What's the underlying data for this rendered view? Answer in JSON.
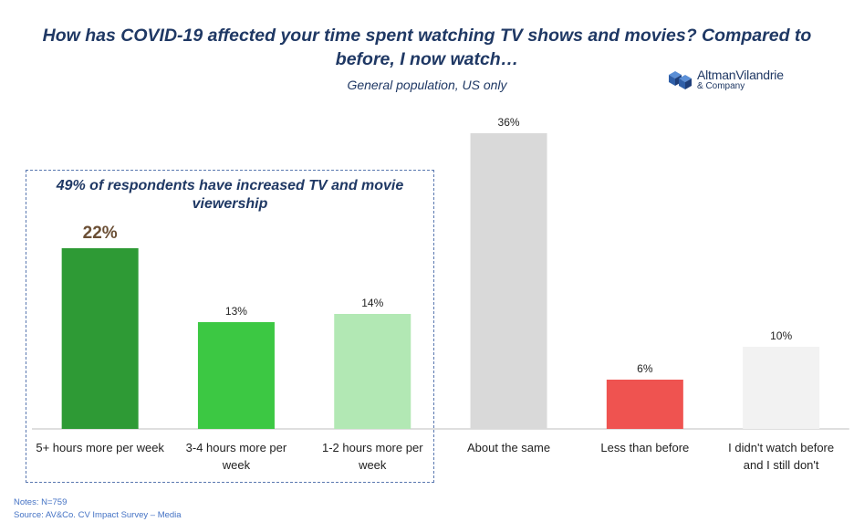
{
  "chart_data": {
    "type": "bar",
    "title": "How has COVID-19 affected your time spent watching TV shows and movies? Compared to before, I now watch…",
    "subtitle": "General population, US only",
    "categories": [
      "5+ hours more per week",
      "3-4 hours more per week",
      "1-2 hours more per week",
      "About the same",
      "Less than before",
      "I didn't watch before and I still don't"
    ],
    "values": [
      22,
      13,
      14,
      36,
      6,
      10
    ],
    "value_labels": [
      "22%",
      "13%",
      "14%",
      "36%",
      "6%",
      "10%"
    ],
    "colors": [
      "#2e9a35",
      "#3cc843",
      "#b2e8b4",
      "#d9d9d9",
      "#ef5350",
      "#f2f2f2"
    ],
    "ylim": [
      0,
      36
    ],
    "grid": false,
    "xlabel": "",
    "ylabel": ""
  },
  "callout": {
    "text": "49% of respondents have increased TV and movie viewership"
  },
  "logo": {
    "name": "AltmanVilandrie",
    "sub": "& Company"
  },
  "notes": {
    "line1": "Notes: N=759",
    "line2": "Source: AV&Co. CV Impact Survey – Media"
  }
}
